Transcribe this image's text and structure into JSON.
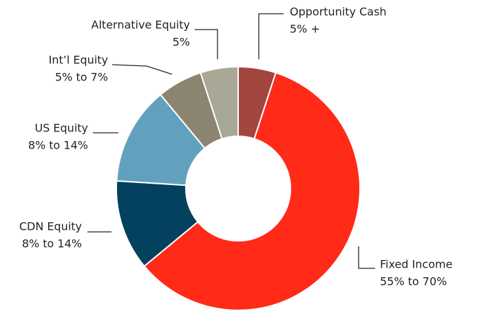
{
  "chart_data": {
    "type": "donut",
    "categories": [
      "Opportunity Cash",
      "Fixed Income",
      "CDN Equity",
      "US Equity",
      "Int’l Equity",
      "Alternative Equity"
    ],
    "ranges": [
      "5% +",
      "55% to 70%",
      "8% to 14%",
      "8% to 14%",
      "5% to 7%",
      "5%"
    ],
    "values": [
      5,
      59,
      12,
      13,
      6,
      5
    ],
    "colors": [
      "#a3453f",
      "#ff2a18",
      "#04415f",
      "#62a1bd",
      "#8b8470",
      "#a9a795"
    ]
  }
}
